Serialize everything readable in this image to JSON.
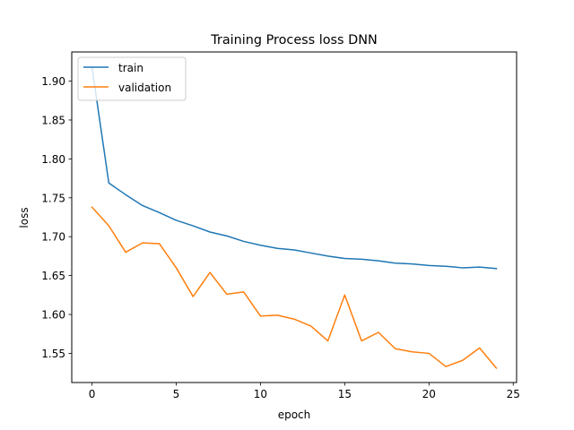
{
  "chart_data": {
    "type": "line",
    "title": "Training Process loss DNN",
    "xlabel": "epoch",
    "ylabel": "loss",
    "xlim": [
      -1.2,
      25.2
    ],
    "ylim": [
      1.5125,
      1.9375
    ],
    "xticks": [
      0,
      5,
      10,
      15,
      20,
      25
    ],
    "xtick_labels": [
      "0",
      "5",
      "10",
      "15",
      "20",
      "25"
    ],
    "yticks": [
      1.55,
      1.6,
      1.65,
      1.7,
      1.75,
      1.8,
      1.85,
      1.9
    ],
    "ytick_labels": [
      "1.55",
      "1.60",
      "1.65",
      "1.70",
      "1.75",
      "1.80",
      "1.85",
      "1.90"
    ],
    "grid": false,
    "legend_position": "upper-left",
    "x": [
      0,
      1,
      2,
      3,
      4,
      5,
      6,
      7,
      8,
      9,
      10,
      11,
      12,
      13,
      14,
      15,
      16,
      17,
      18,
      19,
      20,
      21,
      22,
      23,
      24
    ],
    "series": [
      {
        "name": "train",
        "color": "#1f77b4",
        "values": [
          1.918,
          1.769,
          1.754,
          1.74,
          1.731,
          1.721,
          1.714,
          1.706,
          1.701,
          1.694,
          1.689,
          1.685,
          1.683,
          1.679,
          1.675,
          1.672,
          1.671,
          1.669,
          1.666,
          1.665,
          1.663,
          1.662,
          1.66,
          1.661,
          1.659
        ]
      },
      {
        "name": "validation",
        "color": "#ff7f0e",
        "values": [
          1.738,
          1.714,
          1.68,
          1.692,
          1.691,
          1.66,
          1.623,
          1.654,
          1.626,
          1.629,
          1.598,
          1.599,
          1.594,
          1.585,
          1.566,
          1.625,
          1.566,
          1.577,
          1.556,
          1.552,
          1.55,
          1.533,
          1.541,
          1.557,
          1.531
        ]
      }
    ]
  }
}
